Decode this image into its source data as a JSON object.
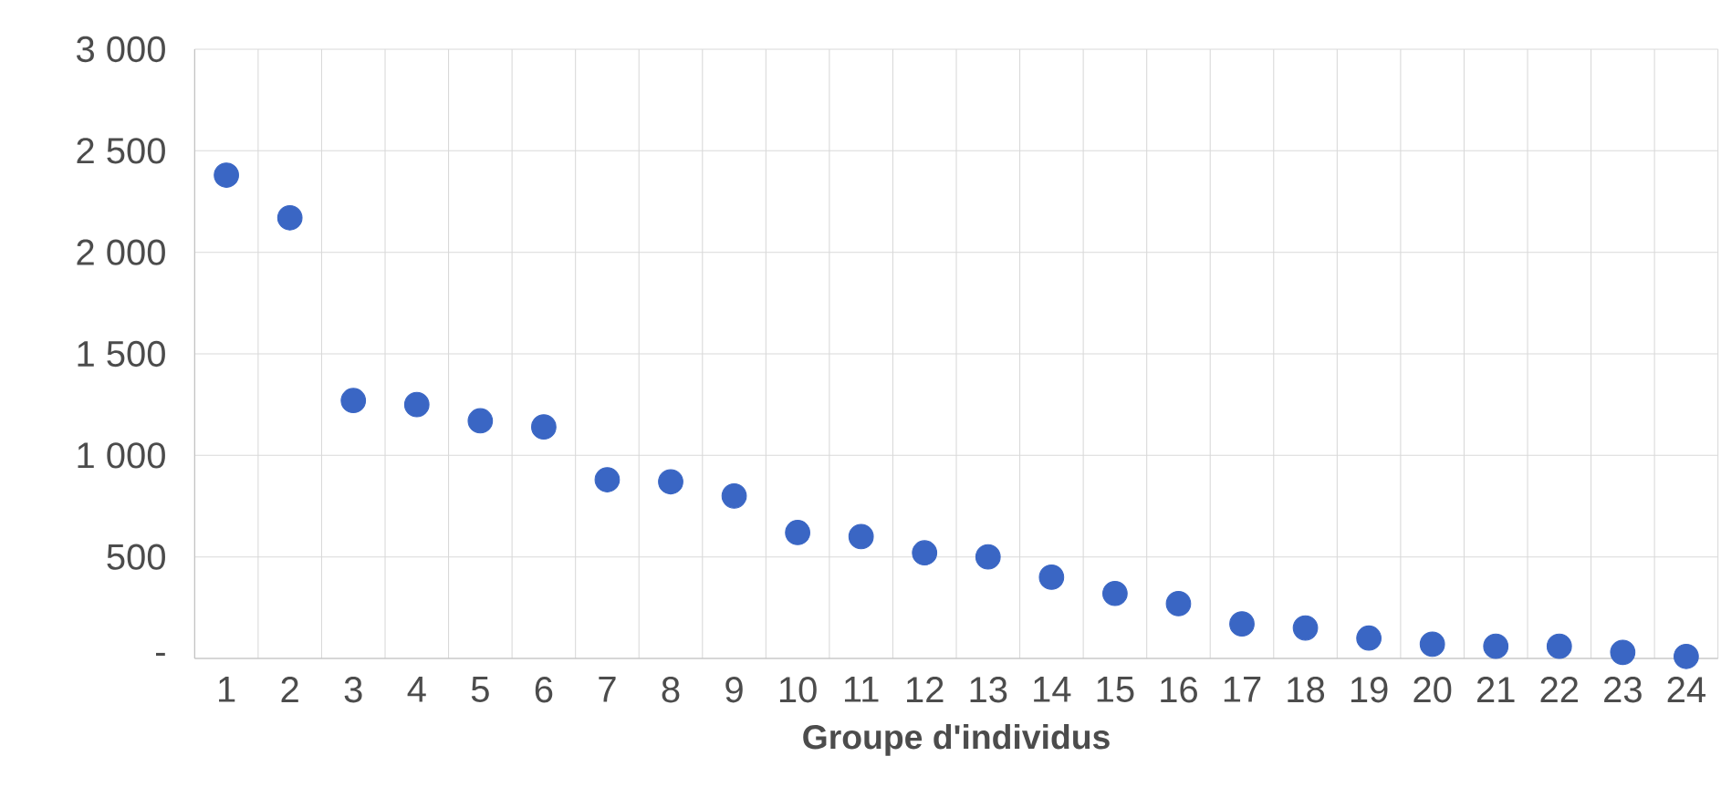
{
  "chart_data": {
    "type": "scatter",
    "xlabel": "Groupe d'individus",
    "categories": [
      "1",
      "2",
      "3",
      "4",
      "5",
      "6",
      "7",
      "8",
      "9",
      "10",
      "11",
      "12",
      "13",
      "14",
      "15",
      "16",
      "17",
      "18",
      "19",
      "20",
      "21",
      "22",
      "23",
      "24"
    ],
    "values": [
      2380,
      2170,
      1270,
      1250,
      1170,
      1140,
      880,
      870,
      800,
      620,
      600,
      520,
      500,
      400,
      320,
      270,
      170,
      150,
      100,
      70,
      60,
      60,
      30,
      10
    ],
    "color": "#3a66c4",
    "grid": true,
    "ylim": [
      0,
      3000
    ],
    "yticks": [
      {
        "value": 0,
        "label": "-"
      },
      500,
      {
        "value": 1000,
        "label": "1 000"
      },
      {
        "value": 1500,
        "label": "1 500"
      },
      {
        "value": 2000,
        "label": "2 000"
      },
      {
        "value": 2500,
        "label": "2 500"
      },
      {
        "value": 3000,
        "label": "3 000"
      }
    ]
  }
}
